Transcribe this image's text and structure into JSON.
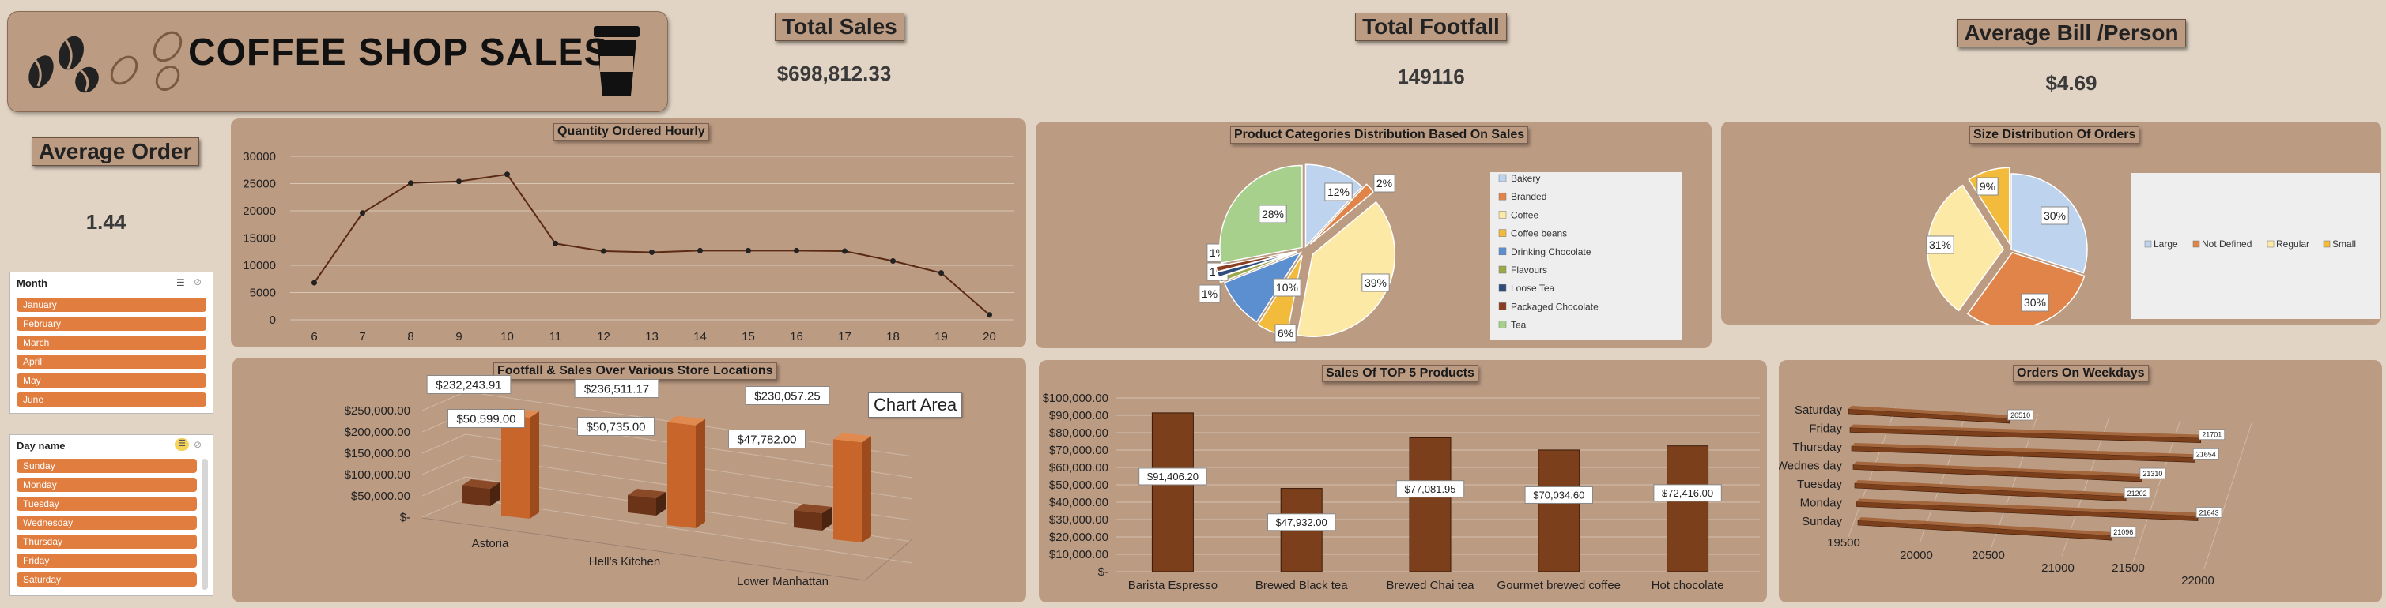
{
  "header": {
    "title": "COFFEE SHOP SALES"
  },
  "kpis": {
    "total_sales_label": "Total Sales",
    "total_sales_value": "$698,812.33",
    "total_footfall_label": "Total Footfall",
    "total_footfall_value": "149116",
    "avg_bill_label": "Average Bill /Person",
    "avg_bill_value": "$4.69",
    "avg_order_label": "Average Order",
    "avg_order_value": "1.44"
  },
  "slicers": {
    "month": {
      "title": "Month",
      "items": [
        "January",
        "February",
        "March",
        "April",
        "May",
        "June"
      ]
    },
    "day": {
      "title": "Day name",
      "items": [
        "Sunday",
        "Monday",
        "Tuesday",
        "Wednesday",
        "Thursday",
        "Friday",
        "Saturday"
      ]
    }
  },
  "colors": {
    "background": "#e1d4c4",
    "panel": "#bc9b83",
    "bar_brown": "#7b3f1c",
    "bar_orange": "#c8652a",
    "slicer_item": "#e07d3f"
  },
  "chart_area_tooltip": "Chart Area",
  "chart_data": [
    {
      "id": "hourly",
      "type": "line",
      "title": "Quantity Ordered Hourly",
      "x": [
        6,
        7,
        8,
        9,
        10,
        11,
        12,
        13,
        14,
        15,
        16,
        17,
        18,
        19,
        20
      ],
      "values": [
        6800,
        19600,
        25100,
        25400,
        26700,
        14000,
        12600,
        12400,
        12700,
        12700,
        12700,
        12600,
        10800,
        8600,
        900
      ],
      "ylim": [
        0,
        30000
      ],
      "yticks": [
        "0",
        "5000",
        "10000",
        "15000",
        "20000",
        "25000",
        "30000"
      ],
      "grid": true
    },
    {
      "id": "categories",
      "type": "pie",
      "title": "Product Categories Distribution Based On Sales",
      "labels": [
        "Bakery",
        "Branded",
        "Coffee",
        "Coffee beans",
        "Drinking Chocolate",
        "Flavours",
        "Loose Tea",
        "Packaged Chocolate",
        "Tea"
      ],
      "values": [
        12,
        2,
        39,
        6,
        10,
        1,
        1,
        1,
        28
      ],
      "data_labels": [
        "12%",
        "2%",
        "39%",
        "6%",
        "10%",
        "1%",
        "1%",
        "1%",
        "28%"
      ],
      "colors": [
        "#bdd3ee",
        "#e0844a",
        "#fde9a6",
        "#f2bb3b",
        "#5b8fd0",
        "#9aa84a",
        "#2e4c7c",
        "#8b3d1f",
        "#a8d08d"
      ],
      "legend": "right"
    },
    {
      "id": "size",
      "type": "pie",
      "title": "Size Distribution Of Orders",
      "labels": [
        "Large",
        "Not Defined",
        "Regular",
        "Small"
      ],
      "values": [
        30,
        30,
        31,
        9
      ],
      "data_labels": [
        "30%",
        "30%",
        "31%",
        "9%"
      ],
      "colors": [
        "#bdd3ee",
        "#e0844a",
        "#fde9a6",
        "#f2bb3b"
      ],
      "legend": "right"
    },
    {
      "id": "locations",
      "type": "bar",
      "title": "Footfall & Sales Over Various Store Locations",
      "categories": [
        "Astoria",
        "Hell's Kitchen",
        "Lower Manhattan"
      ],
      "series": [
        {
          "values": [
            50599,
            50735,
            47782
          ],
          "labels": [
            "$50,599.00",
            "$50,735.00",
            "$47,782.00"
          ]
        },
        {
          "values": [
            232243.91,
            236511.17,
            230057.25
          ],
          "labels": [
            "$232,243.91",
            "$236,511.17",
            "$230,057.25"
          ]
        }
      ],
      "ylim": [
        0,
        250000
      ],
      "yticks": [
        "$250,000.00",
        "$200,000.00",
        "$150,000.00",
        "$100,000.00",
        "$50,000.00",
        "$-"
      ]
    },
    {
      "id": "top5",
      "type": "bar",
      "title": "Sales  Of  TOP 5  Products",
      "categories": [
        "Barista Espresso",
        "Brewed Black tea",
        "Brewed Chai tea",
        "Gourmet brewed coffee",
        "Hot chocolate"
      ],
      "values": [
        91406.2,
        47932.0,
        77081.95,
        70034.6,
        72416.0
      ],
      "labels": [
        "$91,406.20",
        "$47,932.00",
        "$77,081.95",
        "$70,034.60",
        "$72,416.00"
      ],
      "ylim": [
        0,
        100000
      ],
      "yticks": [
        "$100,000.00",
        "$90,000.00",
        "$80,000.00",
        "$70,000.00",
        "$60,000.00",
        "$50,000.00",
        "$40,000.00",
        "$30,000.00",
        "$20,000.00",
        "$10,000.00",
        "$-"
      ]
    },
    {
      "id": "weekdays",
      "type": "bar",
      "orientation": "horizontal",
      "title": "Orders On Weekdays",
      "categories": [
        "Saturday",
        "Friday",
        "Thursday",
        "Wednesday",
        "Tuesday",
        "Monday",
        "Sunday"
      ],
      "category_labels": [
        "Saturday",
        "Friday",
        "Thursday",
        "Wednes day",
        "Tuesday",
        "Monday",
        "Sunday"
      ],
      "values": [
        20510,
        21701,
        21654,
        21310,
        21202,
        21643,
        21096
      ],
      "xlim": [
        19500,
        22000
      ],
      "xticks": [
        "19500",
        "20000",
        "20500",
        "21000",
        "21500",
        "22000"
      ]
    }
  ]
}
